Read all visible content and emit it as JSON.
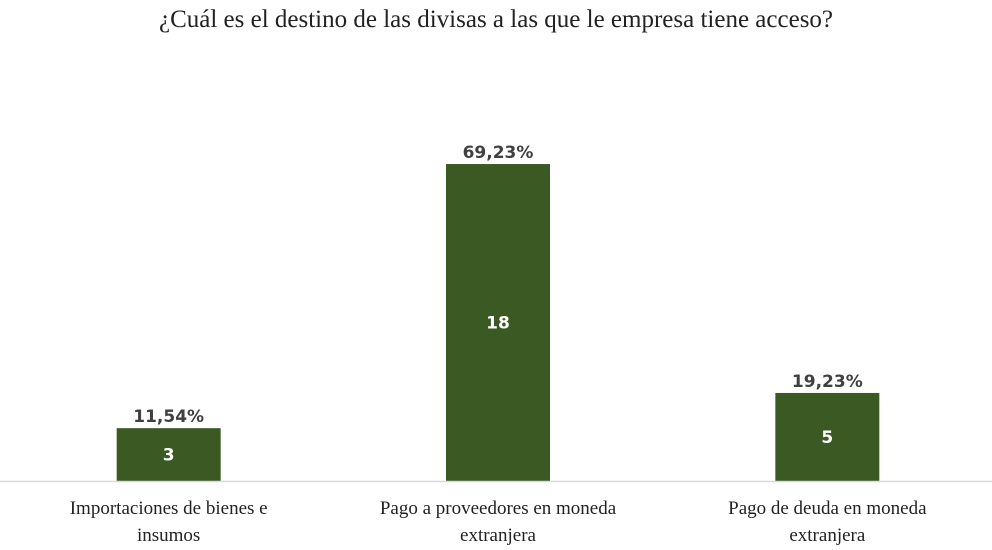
{
  "chart_data": {
    "type": "bar",
    "title": "¿Cuál es el destino de las divisas a las que le empresa tiene acceso?",
    "categories": [
      [
        "Importaciones de bienes e",
        "insumos"
      ],
      [
        "Pago a proveedores en moneda",
        "extranjera"
      ],
      [
        "Pago de deuda en moneda",
        "extranjera"
      ]
    ],
    "series": [
      {
        "values": [
          3,
          18,
          5
        ],
        "percent_labels": [
          "11,54%",
          "69,23%",
          "19,23%"
        ]
      }
    ],
    "ylim": [
      0,
      20.5
    ],
    "grid": false,
    "legend": "none",
    "bar_color": "#3b5a23",
    "axis_color": "#d9d9d9"
  }
}
